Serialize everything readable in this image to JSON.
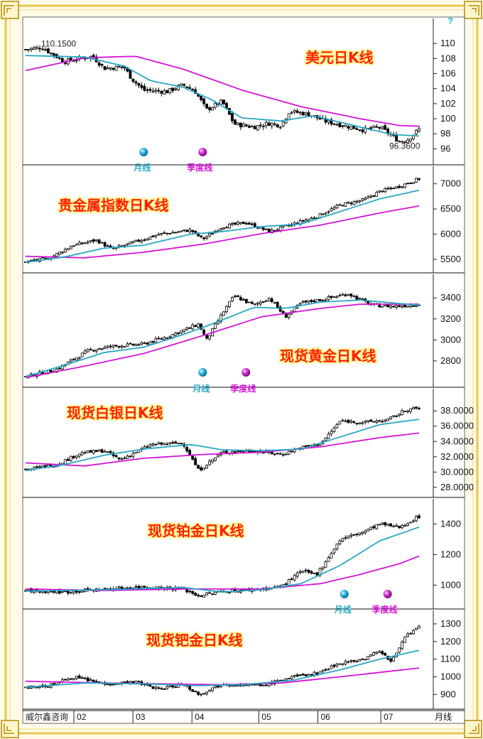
{
  "corner_label": "威尔鑫咨询",
  "help_glyph": "?",
  "colors": {
    "frame": "#e6c84c",
    "candle": "#000000",
    "ma_month": "#27a8c6",
    "ma_quarter": "#d515d5",
    "title": "#ff2200"
  },
  "legend": {
    "month": "月线",
    "quarter": "季度线"
  },
  "chart_data": [
    {
      "type": "candlestick",
      "title": "美元日K线",
      "ylim": [
        95,
        112
      ],
      "yticks": [
        96,
        98,
        100,
        102,
        104,
        106,
        108,
        110
      ],
      "tick_format": "int",
      "annotations": {
        "high": "110.1500",
        "low": "96.3600"
      },
      "close": [
        [
          0,
          109.2
        ],
        [
          0.04,
          109.5
        ],
        [
          0.1,
          107.6
        ],
        [
          0.17,
          108.3
        ],
        [
          0.2,
          106.7
        ],
        [
          0.25,
          106.9
        ],
        [
          0.27,
          105.3
        ],
        [
          0.3,
          103.8
        ],
        [
          0.36,
          103.6
        ],
        [
          0.4,
          104.5
        ],
        [
          0.43,
          103.7
        ],
        [
          0.46,
          101.2
        ],
        [
          0.5,
          102.3
        ],
        [
          0.53,
          99.3
        ],
        [
          0.58,
          98.9
        ],
        [
          0.62,
          99.4
        ],
        [
          0.65,
          99.1
        ],
        [
          0.67,
          101.0
        ],
        [
          0.72,
          100.6
        ],
        [
          0.76,
          99.7
        ],
        [
          0.8,
          99.2
        ],
        [
          0.86,
          98.5
        ],
        [
          0.9,
          98.9
        ],
        [
          0.95,
          97.0
        ],
        [
          0.97,
          97.2
        ],
        [
          1.0,
          98.6
        ]
      ],
      "ma_month": [
        [
          0,
          108.4
        ],
        [
          0.15,
          108.2
        ],
        [
          0.25,
          107.0
        ],
        [
          0.32,
          105.0
        ],
        [
          0.4,
          104.2
        ],
        [
          0.47,
          102.6
        ],
        [
          0.55,
          100.1
        ],
        [
          0.65,
          99.7
        ],
        [
          0.73,
          100.4
        ],
        [
          0.85,
          98.9
        ],
        [
          0.93,
          97.9
        ],
        [
          1.0,
          97.7
        ]
      ],
      "ma_quarter": [
        [
          0,
          106.4
        ],
        [
          0.15,
          108.1
        ],
        [
          0.28,
          108.3
        ],
        [
          0.4,
          106.6
        ],
        [
          0.55,
          103.8
        ],
        [
          0.7,
          101.6
        ],
        [
          0.85,
          100.0
        ],
        [
          0.95,
          99.1
        ],
        [
          1.0,
          99.0
        ]
      ],
      "legend_pos": [
        0.3,
        0.45
      ]
    },
    {
      "type": "candlestick",
      "title": "贵金属指数日K线",
      "ylim": [
        5400,
        7150
      ],
      "yticks": [
        5500,
        6000,
        6500,
        7000
      ],
      "tick_format": "int",
      "close": [
        [
          0,
          5450
        ],
        [
          0.06,
          5520
        ],
        [
          0.12,
          5780
        ],
        [
          0.18,
          5880
        ],
        [
          0.22,
          5700
        ],
        [
          0.28,
          5850
        ],
        [
          0.34,
          6000
        ],
        [
          0.42,
          6080
        ],
        [
          0.45,
          5900
        ],
        [
          0.5,
          6150
        ],
        [
          0.56,
          6230
        ],
        [
          0.62,
          6050
        ],
        [
          0.68,
          6200
        ],
        [
          0.74,
          6350
        ],
        [
          0.8,
          6580
        ],
        [
          0.86,
          6680
        ],
        [
          0.9,
          6850
        ],
        [
          0.95,
          6950
        ],
        [
          1.0,
          7100
        ]
      ],
      "ma_month": [
        [
          0,
          5440
        ],
        [
          0.1,
          5550
        ],
        [
          0.2,
          5720
        ],
        [
          0.3,
          5780
        ],
        [
          0.42,
          6000
        ],
        [
          0.5,
          6050
        ],
        [
          0.6,
          6150
        ],
        [
          0.7,
          6200
        ],
        [
          0.8,
          6450
        ],
        [
          0.9,
          6700
        ],
        [
          1.0,
          6870
        ]
      ],
      "ma_quarter": [
        [
          0,
          5560
        ],
        [
          0.15,
          5530
        ],
        [
          0.3,
          5640
        ],
        [
          0.45,
          5800
        ],
        [
          0.6,
          6010
        ],
        [
          0.75,
          6180
        ],
        [
          0.9,
          6420
        ],
        [
          1.0,
          6560
        ]
      ]
    },
    {
      "type": "candlestick",
      "title": "现货黄金日K线",
      "ylim": [
        2630,
        3530
      ],
      "yticks": [
        2800,
        3000,
        3200,
        3400
      ],
      "tick_format": "int",
      "close": [
        [
          0,
          2650
        ],
        [
          0.08,
          2720
        ],
        [
          0.16,
          2900
        ],
        [
          0.22,
          2940
        ],
        [
          0.3,
          2960
        ],
        [
          0.36,
          3030
        ],
        [
          0.44,
          3150
        ],
        [
          0.46,
          3000
        ],
        [
          0.5,
          3250
        ],
        [
          0.53,
          3420
        ],
        [
          0.58,
          3330
        ],
        [
          0.62,
          3400
        ],
        [
          0.66,
          3220
        ],
        [
          0.7,
          3350
        ],
        [
          0.76,
          3390
        ],
        [
          0.82,
          3440
        ],
        [
          0.88,
          3330
        ],
        [
          0.94,
          3320
        ],
        [
          1.0,
          3340
        ]
      ],
      "ma_month": [
        [
          0,
          2650
        ],
        [
          0.1,
          2760
        ],
        [
          0.2,
          2880
        ],
        [
          0.3,
          2930
        ],
        [
          0.4,
          3050
        ],
        [
          0.48,
          3160
        ],
        [
          0.58,
          3310
        ],
        [
          0.66,
          3300
        ],
        [
          0.75,
          3360
        ],
        [
          0.85,
          3380
        ],
        [
          1.0,
          3330
        ]
      ],
      "ma_quarter": [
        [
          0,
          2640
        ],
        [
          0.15,
          2750
        ],
        [
          0.3,
          2870
        ],
        [
          0.45,
          3040
        ],
        [
          0.6,
          3220
        ],
        [
          0.75,
          3300
        ],
        [
          0.85,
          3340
        ],
        [
          1.0,
          3340
        ]
      ],
      "legend_pos": [
        0.45,
        0.56
      ]
    },
    {
      "type": "candlestick",
      "title": "现货白银日K线",
      "ylim": [
        27.8,
        39.6
      ],
      "yticks": [
        28,
        30,
        32,
        34,
        36,
        38
      ],
      "tick_format": "4dp",
      "close": [
        [
          0,
          30.3
        ],
        [
          0.08,
          31.0
        ],
        [
          0.14,
          32.5
        ],
        [
          0.2,
          32.8
        ],
        [
          0.24,
          31.6
        ],
        [
          0.32,
          33.6
        ],
        [
          0.4,
          33.8
        ],
        [
          0.44,
          30.2
        ],
        [
          0.5,
          32.6
        ],
        [
          0.58,
          32.8
        ],
        [
          0.65,
          32.3
        ],
        [
          0.7,
          33.2
        ],
        [
          0.75,
          33.7
        ],
        [
          0.8,
          36.7
        ],
        [
          0.86,
          36.5
        ],
        [
          0.92,
          36.8
        ],
        [
          0.97,
          38.2
        ],
        [
          1.0,
          38.3
        ]
      ],
      "ma_month": [
        [
          0,
          30.2
        ],
        [
          0.1,
          31.0
        ],
        [
          0.2,
          32.2
        ],
        [
          0.3,
          33.0
        ],
        [
          0.42,
          33.6
        ],
        [
          0.5,
          32.9
        ],
        [
          0.6,
          32.8
        ],
        [
          0.7,
          33.0
        ],
        [
          0.8,
          34.6
        ],
        [
          0.9,
          36.2
        ],
        [
          1.0,
          36.9
        ]
      ],
      "ma_quarter": [
        [
          0,
          31.2
        ],
        [
          0.15,
          30.8
        ],
        [
          0.3,
          31.8
        ],
        [
          0.45,
          32.3
        ],
        [
          0.6,
          32.6
        ],
        [
          0.75,
          33.3
        ],
        [
          0.9,
          34.5
        ],
        [
          1.0,
          35.1
        ]
      ]
    },
    {
      "type": "candlestick",
      "title": "现货铂金日K线",
      "ylim": [
        900,
        1500
      ],
      "yticks": [
        1000,
        1200,
        1400
      ],
      "tick_format": "int",
      "close": [
        [
          0,
          965
        ],
        [
          0.1,
          955
        ],
        [
          0.2,
          975
        ],
        [
          0.3,
          990
        ],
        [
          0.4,
          975
        ],
        [
          0.44,
          930
        ],
        [
          0.5,
          960
        ],
        [
          0.6,
          975
        ],
        [
          0.65,
          990
        ],
        [
          0.7,
          1090
        ],
        [
          0.74,
          1070
        ],
        [
          0.8,
          1300
        ],
        [
          0.86,
          1350
        ],
        [
          0.9,
          1400
        ],
        [
          0.95,
          1380
        ],
        [
          1.0,
          1450
        ]
      ],
      "ma_month": [
        [
          0,
          960
        ],
        [
          0.2,
          970
        ],
        [
          0.4,
          985
        ],
        [
          0.5,
          955
        ],
        [
          0.6,
          970
        ],
        [
          0.7,
          1010
        ],
        [
          0.8,
          1130
        ],
        [
          0.9,
          1290
        ],
        [
          1.0,
          1380
        ]
      ],
      "ma_quarter": [
        [
          0,
          975
        ],
        [
          0.2,
          965
        ],
        [
          0.4,
          975
        ],
        [
          0.6,
          975
        ],
        [
          0.75,
          1010
        ],
        [
          0.85,
          1070
        ],
        [
          0.95,
          1140
        ],
        [
          1.0,
          1190
        ]
      ],
      "legend_pos": [
        0.81,
        0.92
      ]
    },
    {
      "type": "candlestick",
      "title": "现货钯金日K线",
      "ylim": [
        865,
        1320
      ],
      "yticks": [
        900,
        1000,
        1100,
        1200,
        1300
      ],
      "tick_format": "int",
      "x_labels": [
        "02",
        "03",
        "04",
        "05",
        "06",
        "07"
      ],
      "x_label_pos": [
        0.13,
        0.28,
        0.43,
        0.6,
        0.75,
        0.91
      ],
      "x_suffix": "月线",
      "close": [
        [
          0,
          940
        ],
        [
          0.06,
          950
        ],
        [
          0.12,
          1000
        ],
        [
          0.2,
          960
        ],
        [
          0.28,
          970
        ],
        [
          0.34,
          930
        ],
        [
          0.4,
          960
        ],
        [
          0.44,
          900
        ],
        [
          0.5,
          960
        ],
        [
          0.6,
          950
        ],
        [
          0.68,
          1000
        ],
        [
          0.74,
          1020
        ],
        [
          0.8,
          1080
        ],
        [
          0.86,
          1100
        ],
        [
          0.9,
          1150
        ],
        [
          0.93,
          1080
        ],
        [
          0.96,
          1220
        ],
        [
          1.0,
          1280
        ]
      ],
      "ma_month": [
        [
          0,
          940
        ],
        [
          0.15,
          965
        ],
        [
          0.3,
          960
        ],
        [
          0.44,
          950
        ],
        [
          0.55,
          955
        ],
        [
          0.68,
          980
        ],
        [
          0.8,
          1040
        ],
        [
          0.9,
          1100
        ],
        [
          1.0,
          1150
        ]
      ],
      "ma_quarter": [
        [
          0,
          975
        ],
        [
          0.2,
          965
        ],
        [
          0.35,
          960
        ],
        [
          0.5,
          955
        ],
        [
          0.65,
          965
        ],
        [
          0.8,
          1000
        ],
        [
          0.92,
          1030
        ],
        [
          1.0,
          1050
        ]
      ]
    }
  ]
}
